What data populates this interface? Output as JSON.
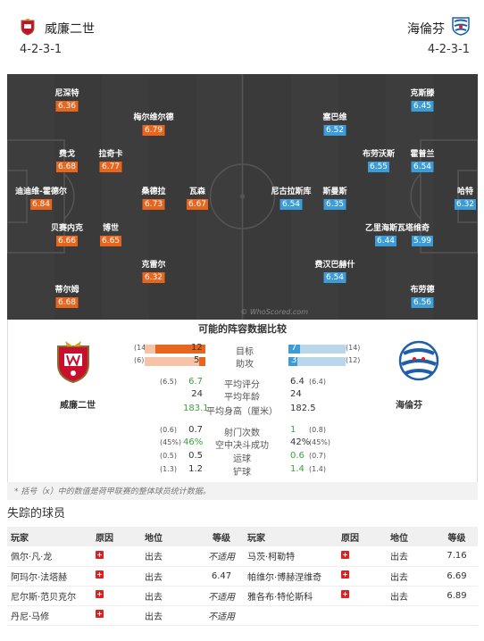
{
  "header": {
    "home_name": "威廉二世",
    "away_name": "海倫芬",
    "home_formation": "4-2-3-1",
    "away_formation": "4-2-3-1"
  },
  "pitch": {
    "watermark": "© WhoScored.com",
    "home_players": [
      {
        "name": "尼深特",
        "rating": "6.36"
      },
      {
        "name": "梅尔维尔德",
        "rating": "6.79"
      },
      {
        "name": "费戈",
        "rating": "6.68"
      },
      {
        "name": "拉奇卡",
        "rating": "6.77"
      },
      {
        "name": "迪迪维-霍德尔",
        "rating": "6.84"
      },
      {
        "name": "桑德拉",
        "rating": "6.73"
      },
      {
        "name": "瓦森",
        "rating": "6.67"
      },
      {
        "name": "贝赛内克",
        "rating": "6.66"
      },
      {
        "name": "博世",
        "rating": "6.65"
      },
      {
        "name": "克雷尔",
        "rating": "6.32"
      },
      {
        "name": "蒂尔姆",
        "rating": "6.68"
      }
    ],
    "away_players": [
      {
        "name": "克斯滕",
        "rating": "6.45"
      },
      {
        "name": "塞巴维",
        "rating": "6.52"
      },
      {
        "name": "布劳沃斯",
        "rating": "6.55"
      },
      {
        "name": "霍普兰",
        "rating": "6.54"
      },
      {
        "name": "哈特",
        "rating": "6.32"
      },
      {
        "name": "尼古拉斯库",
        "rating": "6.54"
      },
      {
        "name": "斯曼斯",
        "rating": "6.35"
      },
      {
        "name": "乙里海斯瓦塔维奇",
        "rating": "6.44"
      },
      {
        "name": "",
        "rating": "5.99"
      },
      {
        "name": "费汉巴赫什",
        "rating": "6.54"
      },
      {
        "name": "布劳德",
        "rating": "6.56"
      }
    ]
  },
  "comparison": {
    "title": "可能的阵容数据比较",
    "home_team": "威廉二世",
    "away_team": "海倫芬",
    "goals": {
      "label": "目标",
      "home": "12",
      "home_league": "(14)",
      "away": "7",
      "away_league": "(14)",
      "home_fraction": 0.46,
      "away_fraction": 0.33
    },
    "assists": {
      "label": "助攻",
      "home": "5",
      "home_league": "(6)",
      "away": "3",
      "away_league": "(12)",
      "home_fraction": 0.19,
      "away_fraction": 0.12
    },
    "stats": [
      {
        "label": "平均评分",
        "home": "6.7",
        "home_league": "(6.5)",
        "away": "6.4",
        "away_league": "(6.4)",
        "home_green": true,
        "away_green": false
      },
      {
        "label": "平均年龄",
        "home": "24",
        "home_league": "",
        "away": "24",
        "away_league": "",
        "home_green": false,
        "away_green": false
      },
      {
        "label": "平均身高（厘米）",
        "home": "183.1",
        "home_league": "",
        "away": "182.5",
        "away_league": "",
        "home_green": true,
        "away_green": false
      },
      {
        "label": "射门次数",
        "home": "0.7",
        "home_league": "(0.6)",
        "away": "1",
        "away_league": "(0.8)",
        "home_green": false,
        "away_green": true
      },
      {
        "label": "空中决斗成功",
        "home": "46%",
        "home_league": "(45%)",
        "away": "42%",
        "away_league": "(45%)",
        "home_green": true,
        "away_green": false
      },
      {
        "label": "运球",
        "home": "0.5",
        "home_league": "(0.5)",
        "away": "0.6",
        "away_league": "(0.7)",
        "home_green": false,
        "away_green": true
      },
      {
        "label": "铲球",
        "home": "1.2",
        "home_league": "(1.3)",
        "away": "1.4",
        "away_league": "(1.4)",
        "home_green": false,
        "away_green": true
      }
    ]
  },
  "note": "* 括号（x）中的数值是荷甲联赛的整体球员统计数据。",
  "missing": {
    "title": "失踪的球员",
    "headers": [
      "玩家",
      "原因",
      "地位",
      "等级",
      "玩家",
      "原因",
      "地位",
      "等级"
    ],
    "rows": [
      {
        "p1": "佩尔·凡·龙",
        "s1": "出去",
        "r1": "不适用",
        "p2": "马茨·柯勒特",
        "s2": "出去",
        "r2": "7.16"
      },
      {
        "p1": "阿玛尔·法塔赫",
        "s1": "出去",
        "r1": "6.47",
        "p2": "帕维尔·博赫涅维奇",
        "s2": "出去",
        "r2": "6.69"
      },
      {
        "p1": "尼尔斯·范贝克尔",
        "s1": "出去",
        "r1": "不适用",
        "p2": "雅各布·特伦斯科",
        "s2": "出去",
        "r2": "6.89"
      },
      {
        "p1": "丹尼·马修",
        "s1": "出去",
        "r1": "不适用",
        "p2": "",
        "s2": "",
        "r2": ""
      }
    ]
  },
  "colors": {
    "home": "#e8651e",
    "away": "#3b9cd8",
    "green": "#3aa33a",
    "cross": "#e02020"
  }
}
